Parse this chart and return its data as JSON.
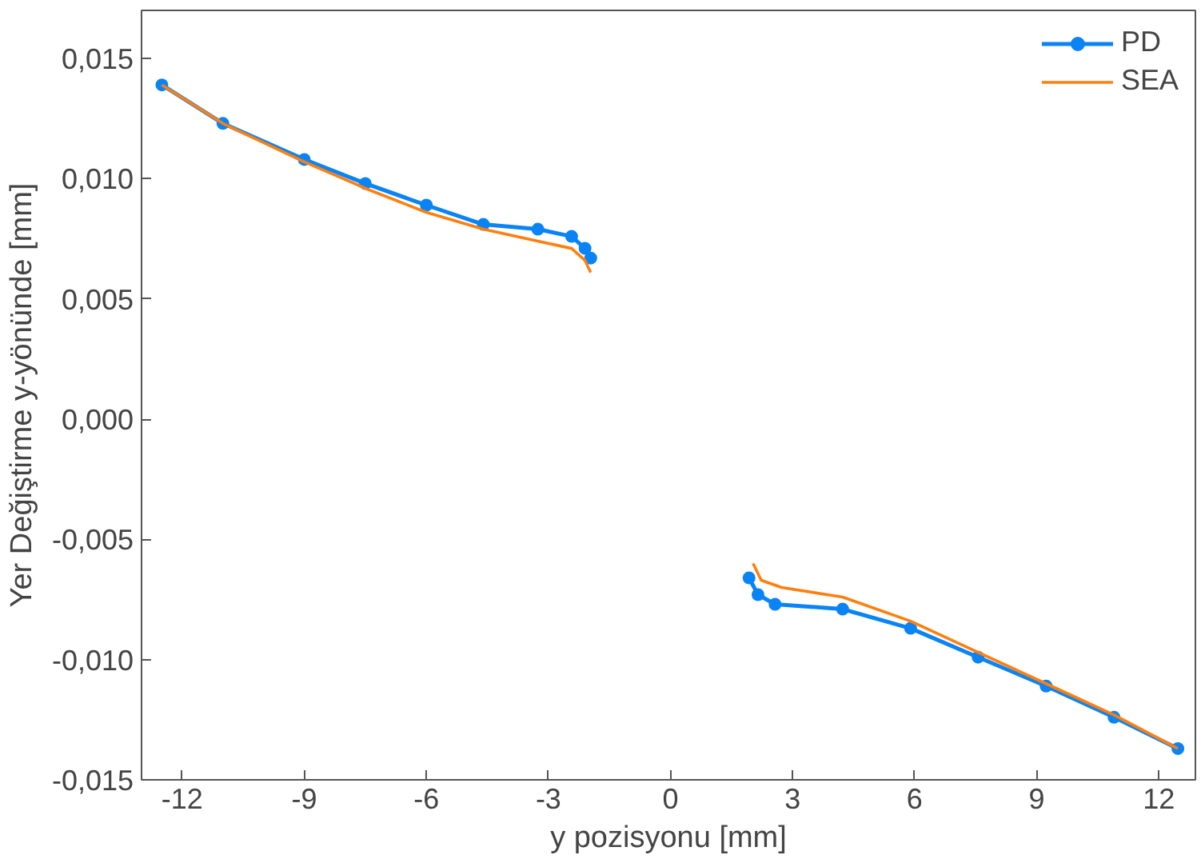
{
  "chart_data": {
    "type": "line",
    "xlabel": "y pozisyonu [mm]",
    "ylabel": "Yer Değiştirme y-yönünde [mm]",
    "xlim": [
      -13,
      12.9
    ],
    "ylim": [
      -0.015,
      0.017
    ],
    "xticks": [
      -12,
      -9,
      -6,
      -3,
      0,
      3,
      6,
      9,
      12
    ],
    "yticks": [
      {
        "value": 0.015,
        "label": "0,015"
      },
      {
        "value": 0.01,
        "label": "0,010"
      },
      {
        "value": 0.005,
        "label": "0,005"
      },
      {
        "value": 0.0,
        "label": "0,000"
      },
      {
        "value": -0.005,
        "label": "-0,005"
      },
      {
        "value": -0.01,
        "label": "-0,010"
      },
      {
        "value": -0.015,
        "label": "-0,015"
      }
    ],
    "grid": false,
    "legend": "top right",
    "series": [
      {
        "name": "PD",
        "color": "#0a84f5",
        "marker": "circle",
        "x": [
          -12.5,
          -11,
          -9,
          -7.5,
          -6,
          -4.6,
          -3.26,
          -2.43,
          -2.1,
          -1.96,
          null,
          1.93,
          2.15,
          2.57,
          4.23,
          5.9,
          7.56,
          9.23,
          10.9,
          12.47
        ],
        "values": [
          0.0139,
          0.0123,
          0.0108,
          0.0098,
          0.0089,
          0.0081,
          0.0079,
          0.0076,
          0.0071,
          0.0067,
          null,
          -0.0066,
          -0.0073,
          -0.0077,
          -0.0079,
          -0.0087,
          -0.0099,
          -0.0111,
          -0.0124,
          -0.0137
        ]
      },
      {
        "name": "SEA",
        "color": "#ff7f0e",
        "marker": "none",
        "x": [
          -12.5,
          -11,
          -9,
          -7.5,
          -6,
          -4.6,
          -3.26,
          -2.43,
          -2.1,
          -1.96,
          null,
          2.03,
          2.23,
          2.73,
          4.23,
          5.9,
          7.56,
          9.23,
          10.9,
          12.47
        ],
        "values": [
          0.0139,
          0.0123,
          0.0107,
          0.0096,
          0.0086,
          0.0079,
          0.0074,
          0.0071,
          0.0066,
          0.0061,
          null,
          -0.006,
          -0.0067,
          -0.007,
          -0.0074,
          -0.0084,
          -0.0097,
          -0.011,
          -0.0123,
          -0.0137
        ]
      }
    ]
  }
}
